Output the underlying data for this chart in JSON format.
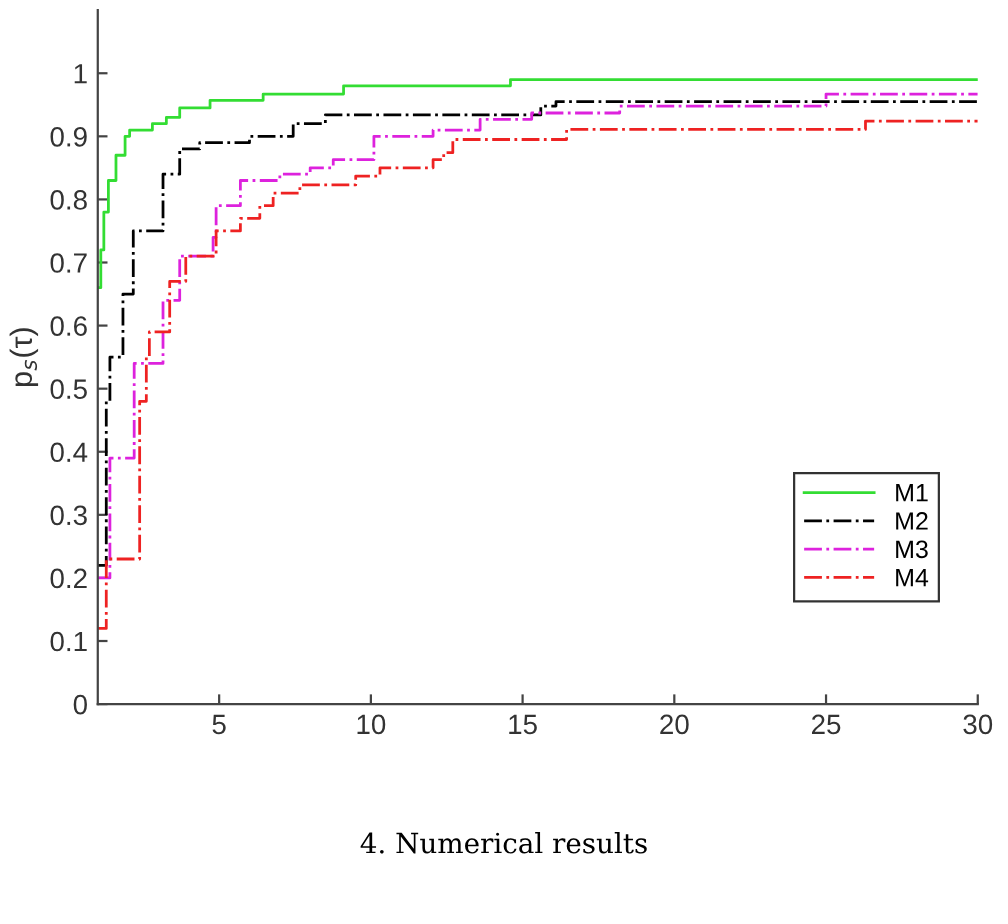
{
  "chart_data": {
    "type": "step",
    "ylabel": "p$_{s}$(τ)",
    "xlim": [
      1,
      30
    ],
    "xticks": [
      5,
      10,
      15,
      20,
      25,
      30
    ],
    "ylim": [
      0,
      1.1
    ],
    "yticks": [
      0,
      0.1,
      0.2,
      0.3,
      0.4,
      0.5,
      0.6,
      0.7,
      0.8,
      0.9,
      1
    ],
    "grid": false,
    "legend": "lower right",
    "marker": "none",
    "annotations": [
      "4. Numerical results"
    ],
    "series": [
      {
        "name": "M1",
        "color": "#33dd33",
        "line_style": "solid",
        "x": [
          1,
          1.1,
          1.2,
          1.35,
          1.6,
          1.9,
          2.05,
          2.8,
          3.26,
          3.7,
          4.7,
          6.45,
          9.1,
          14.6,
          30
        ],
        "values": [
          0.66,
          0.72,
          0.78,
          0.83,
          0.87,
          0.9,
          0.91,
          0.92,
          0.93,
          0.945,
          0.957,
          0.967,
          0.98,
          0.99,
          0.99
        ]
      },
      {
        "name": "M2",
        "color": "#000000",
        "line_style": "dashdot",
        "x": [
          1,
          1.28,
          1.4,
          1.83,
          2.17,
          3.15,
          3.7,
          4.36,
          6.0,
          7.44,
          8.5,
          15.6,
          16.1,
          30
        ],
        "values": [
          0.22,
          0.48,
          0.55,
          0.65,
          0.75,
          0.84,
          0.88,
          0.89,
          0.9,
          0.92,
          0.934,
          0.948,
          0.955,
          0.955
        ]
      },
      {
        "name": "M3",
        "color": "#dd22dd",
        "line_style": "dashdot",
        "x": [
          1,
          1.4,
          2.2,
          3.15,
          3.7,
          4.8,
          4.9,
          5.7,
          7.0,
          8.0,
          8.76,
          10.1,
          12.05,
          13.6,
          15.3,
          18.2,
          25.0,
          30
        ],
        "values": [
          0.2,
          0.39,
          0.54,
          0.64,
          0.71,
          0.74,
          0.79,
          0.83,
          0.84,
          0.85,
          0.863,
          0.9,
          0.91,
          0.927,
          0.937,
          0.948,
          0.967,
          0.967
        ]
      },
      {
        "name": "M4",
        "color": "#ee2222",
        "line_style": "dashdot",
        "x": [
          1,
          1.28,
          2.38,
          2.6,
          2.7,
          3.37,
          3.9,
          4.9,
          5.7,
          6.34,
          6.78,
          7.66,
          9.5,
          10.3,
          12.05,
          12.4,
          12.7,
          16.45,
          26.3,
          30
        ],
        "values": [
          0.12,
          0.23,
          0.48,
          0.55,
          0.59,
          0.67,
          0.71,
          0.75,
          0.77,
          0.79,
          0.81,
          0.823,
          0.837,
          0.85,
          0.863,
          0.874,
          0.895,
          0.911,
          0.924,
          0.924
        ]
      }
    ]
  }
}
